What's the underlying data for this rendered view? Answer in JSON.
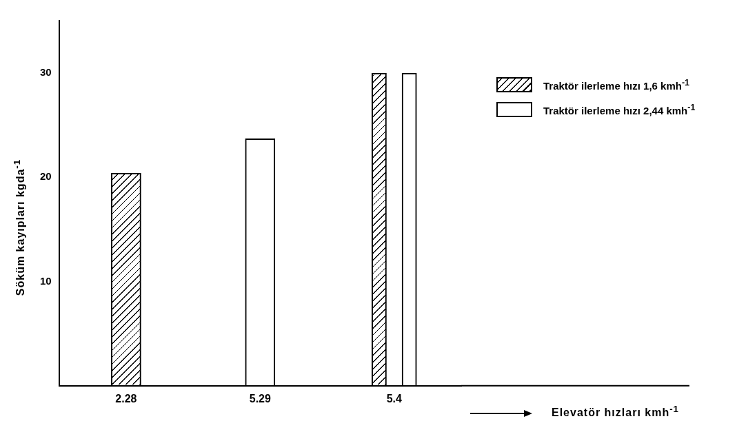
{
  "chart_data": {
    "type": "bar",
    "categories": [
      "2.28",
      "5.29",
      "5.4"
    ],
    "series": [
      {
        "name": "Traktör ilerleme hızı 1,6 kmh$^{-1}$",
        "color": "#000000",
        "values": [
          20.4,
          null,
          30
        ]
      },
      {
        "name": "Traktör ilerleme hızı 2,44 kmh$^{-1}$",
        "color": "#000000",
        "values": [
          null,
          23.7,
          30
        ]
      }
    ],
    "annotations": [
      "Elevatör hızları kmh$^{-1}$"
    ],
    "ylabel": "Söküm kayıpları kgda$^{-1}$",
    "ylim": [
      0,
      35
    ],
    "yticks": [
      10,
      20,
      30
    ],
    "grid": false,
    "legend": "top right"
  }
}
